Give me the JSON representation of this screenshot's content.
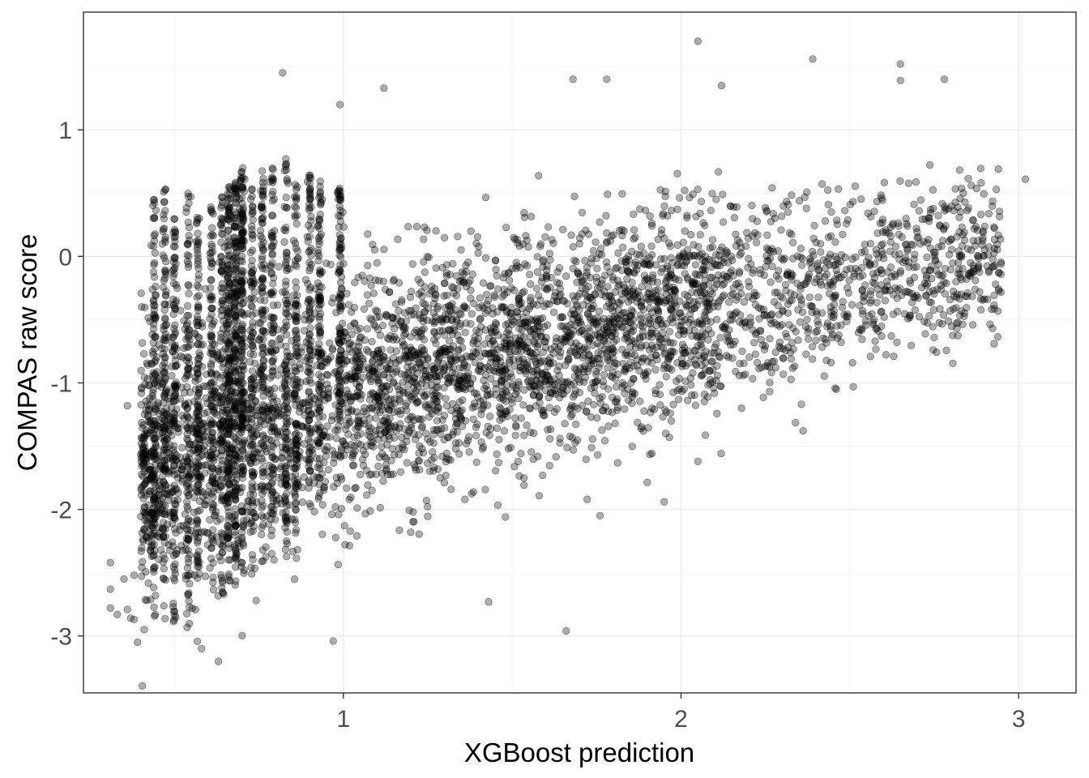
{
  "chart_data": {
    "type": "scatter",
    "title": "",
    "xlabel": "XGBoost prediction",
    "ylabel": "COMPAS raw score",
    "xlim": [
      0.23,
      3.17
    ],
    "ylim": [
      -3.45,
      1.93
    ],
    "x_ticks": [
      1,
      2,
      3
    ],
    "x_tick_labels": [
      "1",
      "2",
      "3"
    ],
    "y_ticks": [
      -3,
      -2,
      -1,
      0,
      1
    ],
    "y_tick_labels": [
      "-3",
      "-2",
      "-1",
      "0",
      "1"
    ],
    "grid": true,
    "legend": "none",
    "point_color": "#000000",
    "point_alpha": 0.33,
    "point_count_approx": 6000,
    "columns": [
      {
        "x": 0.44,
        "ymin": -2.95,
        "ymax": 0.45
      },
      {
        "x": 0.47,
        "ymin": -2.9,
        "ymax": 0.55
      },
      {
        "x": 0.5,
        "ymin": -2.95,
        "ymax": 0.3
      },
      {
        "x": 0.54,
        "ymin": -2.95,
        "ymax": 0.5
      },
      {
        "x": 0.57,
        "ymin": -2.8,
        "ymax": 0.4
      },
      {
        "x": 0.61,
        "ymin": -2.7,
        "ymax": 0.4
      },
      {
        "x": 0.64,
        "ymin": -2.75,
        "ymax": 0.5
      },
      {
        "x": 0.66,
        "ymin": -2.6,
        "ymax": 0.55
      },
      {
        "x": 0.68,
        "ymin": -2.6,
        "ymax": 0.6
      },
      {
        "x": 0.7,
        "ymin": -2.6,
        "ymax": 0.7
      },
      {
        "x": 0.73,
        "ymin": -2.55,
        "ymax": 0.6
      },
      {
        "x": 0.76,
        "ymin": -2.5,
        "ymax": 0.7
      },
      {
        "x": 0.79,
        "ymin": -2.45,
        "ymax": 0.7
      },
      {
        "x": 0.83,
        "ymin": -2.5,
        "ymax": 0.8
      },
      {
        "x": 0.86,
        "ymin": -2.4,
        "ymax": 0.6
      },
      {
        "x": 0.9,
        "ymin": -2.0,
        "ymax": 0.65
      },
      {
        "x": 0.93,
        "ymin": -1.9,
        "ymax": 0.6
      },
      {
        "x": 0.99,
        "ymin": -1.35,
        "ymax": 0.55
      }
    ],
    "outliers": [
      {
        "x": 0.31,
        "y": -2.42
      },
      {
        "x": 0.31,
        "y": -2.63
      },
      {
        "x": 0.31,
        "y": -2.78
      },
      {
        "x": 0.33,
        "y": -2.83
      },
      {
        "x": 0.35,
        "y": -2.55
      },
      {
        "x": 0.36,
        "y": -2.79
      },
      {
        "x": 0.37,
        "y": -2.86
      },
      {
        "x": 0.38,
        "y": -2.52
      },
      {
        "x": 0.38,
        "y": -2.87
      },
      {
        "x": 0.39,
        "y": -3.05
      },
      {
        "x": 0.41,
        "y": -2.95
      },
      {
        "x": 0.43,
        "y": -2.2
      },
      {
        "x": 0.36,
        "y": -1.18
      },
      {
        "x": 0.47,
        "y": 0.43
      },
      {
        "x": 0.58,
        "y": -3.1
      },
      {
        "x": 0.63,
        "y": -3.2
      },
      {
        "x": 0.97,
        "y": -3.04
      },
      {
        "x": 1.43,
        "y": -2.73
      },
      {
        "x": 1.66,
        "y": -2.96
      },
      {
        "x": 2.05,
        "y": 1.7
      },
      {
        "x": 2.39,
        "y": 1.56
      },
      {
        "x": 2.65,
        "y": 1.52
      },
      {
        "x": 0.82,
        "y": 1.45
      },
      {
        "x": 1.78,
        "y": 1.4
      },
      {
        "x": 2.78,
        "y": 1.4
      },
      {
        "x": 1.68,
        "y": 1.4
      },
      {
        "x": 2.94,
        "y": 0.69
      },
      {
        "x": 3.02,
        "y": 0.61
      },
      {
        "x": 2.86,
        "y": 0.56
      },
      {
        "x": 2.63,
        "y": -0.79
      },
      {
        "x": 2.46,
        "y": -1.05
      },
      {
        "x": 2.05,
        "y": -1.62
      },
      {
        "x": 1.95,
        "y": -1.94
      },
      {
        "x": 1.76,
        "y": -2.05
      },
      {
        "x": 1.48,
        "y": -2.06
      },
      {
        "x": 1.12,
        "y": 1.33
      },
      {
        "x": 0.99,
        "y": 1.2
      },
      {
        "x": 2.12,
        "y": 1.35
      },
      {
        "x": 2.65,
        "y": 1.39
      }
    ]
  }
}
